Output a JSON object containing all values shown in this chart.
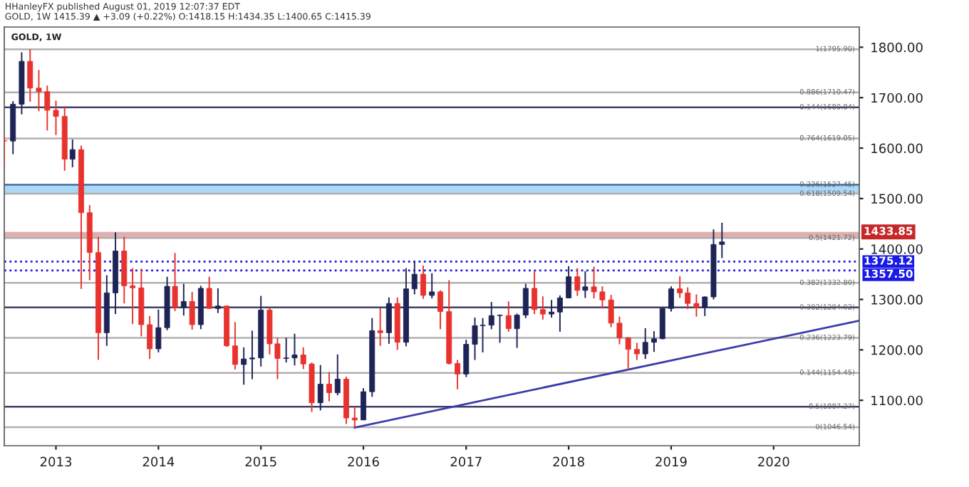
{
  "chart_data": {
    "type": "candlestick",
    "title": "GOLD, 1W",
    "subtitle": "GOLD, 1W 1415.39 ▲ +3.09 (+0.22%) O:1418.15 H:1434.35 L:1400.65 C:1415.39",
    "annotations": [
      "HHanleyFX published August 01, 2019 12:07:37 EDT"
    ],
    "x": [
      "2012-07",
      "2012-08",
      "2012-09",
      "2012-10",
      "2012-11",
      "2012-12",
      "2013-01",
      "2013-02",
      "2013-03",
      "2013-04",
      "2013-05",
      "2013-06",
      "2013-07",
      "2013-08",
      "2013-09",
      "2013-10",
      "2013-11",
      "2013-12",
      "2014-01",
      "2014-02",
      "2014-03",
      "2014-04",
      "2014-05",
      "2014-06",
      "2014-07",
      "2014-08",
      "2014-09",
      "2014-10",
      "2014-11",
      "2014-12",
      "2015-01",
      "2015-02",
      "2015-03",
      "2015-04",
      "2015-05",
      "2015-06",
      "2015-07",
      "2015-08",
      "2015-09",
      "2015-10",
      "2015-11",
      "2015-12",
      "2016-01",
      "2016-02",
      "2016-03",
      "2016-04",
      "2016-05",
      "2016-06",
      "2016-07",
      "2016-08",
      "2016-09",
      "2016-10",
      "2016-11",
      "2016-12",
      "2017-01",
      "2017-02",
      "2017-03",
      "2017-04",
      "2017-05",
      "2017-06",
      "2017-07",
      "2017-08",
      "2017-09",
      "2017-10",
      "2017-11",
      "2017-12",
      "2018-01",
      "2018-02",
      "2018-03",
      "2018-04",
      "2018-05",
      "2018-06",
      "2018-07",
      "2018-08",
      "2018-09",
      "2018-10",
      "2018-11",
      "2018-12",
      "2019-01",
      "2019-02",
      "2019-03",
      "2019-04",
      "2019-05",
      "2019-06",
      "2019-07"
    ],
    "ohlc": [
      [
        1615,
        1627,
        1565,
        1614
      ],
      [
        1614,
        1693,
        1588,
        1687
      ],
      [
        1687,
        1790,
        1667,
        1772
      ],
      [
        1772,
        1796,
        1692,
        1719
      ],
      [
        1719,
        1755,
        1673,
        1712
      ],
      [
        1712,
        1724,
        1635,
        1675
      ],
      [
        1675,
        1694,
        1626,
        1663
      ],
      [
        1663,
        1683,
        1555,
        1578
      ],
      [
        1578,
        1617,
        1562,
        1597
      ],
      [
        1597,
        1605,
        1321,
        1472
      ],
      [
        1472,
        1487,
        1338,
        1393
      ],
      [
        1393,
        1424,
        1180,
        1234
      ],
      [
        1234,
        1348,
        1208,
        1313
      ],
      [
        1313,
        1433,
        1271,
        1396
      ],
      [
        1396,
        1424,
        1292,
        1327
      ],
      [
        1327,
        1362,
        1251,
        1323
      ],
      [
        1323,
        1361,
        1227,
        1250
      ],
      [
        1250,
        1267,
        1182,
        1202
      ],
      [
        1202,
        1280,
        1195,
        1244
      ],
      [
        1244,
        1345,
        1239,
        1326
      ],
      [
        1326,
        1392,
        1277,
        1284
      ],
      [
        1284,
        1331,
        1268,
        1296
      ],
      [
        1296,
        1315,
        1240,
        1250
      ],
      [
        1250,
        1327,
        1241,
        1322
      ],
      [
        1322,
        1345,
        1281,
        1282
      ],
      [
        1282,
        1322,
        1273,
        1287
      ],
      [
        1287,
        1287,
        1206,
        1208
      ],
      [
        1208,
        1255,
        1161,
        1171
      ],
      [
        1171,
        1205,
        1131,
        1182
      ],
      [
        1182,
        1238,
        1142,
        1184
      ],
      [
        1184,
        1307,
        1167,
        1279
      ],
      [
        1279,
        1283,
        1191,
        1212
      ],
      [
        1212,
        1224,
        1142,
        1183
      ],
      [
        1183,
        1224,
        1175,
        1184
      ],
      [
        1184,
        1232,
        1169,
        1190
      ],
      [
        1190,
        1205,
        1162,
        1172
      ],
      [
        1172,
        1175,
        1077,
        1095
      ],
      [
        1095,
        1170,
        1080,
        1132
      ],
      [
        1132,
        1156,
        1098,
        1115
      ],
      [
        1115,
        1191,
        1110,
        1142
      ],
      [
        1142,
        1147,
        1053,
        1065
      ],
      [
        1065,
        1088,
        1046,
        1061
      ],
      [
        1061,
        1124,
        1061,
        1117
      ],
      [
        1117,
        1263,
        1107,
        1238
      ],
      [
        1238,
        1283,
        1208,
        1234
      ],
      [
        1234,
        1304,
        1212,
        1292
      ],
      [
        1292,
        1304,
        1200,
        1215
      ],
      [
        1215,
        1362,
        1207,
        1321
      ],
      [
        1321,
        1375,
        1310,
        1350
      ],
      [
        1350,
        1367,
        1301,
        1308
      ],
      [
        1308,
        1352,
        1302,
        1315
      ],
      [
        1315,
        1318,
        1241,
        1276
      ],
      [
        1276,
        1338,
        1171,
        1173
      ],
      [
        1173,
        1180,
        1122,
        1152
      ],
      [
        1152,
        1220,
        1146,
        1211
      ],
      [
        1211,
        1264,
        1180,
        1248
      ],
      [
        1248,
        1263,
        1195,
        1249
      ],
      [
        1249,
        1295,
        1241,
        1268
      ],
      [
        1268,
        1270,
        1214,
        1268
      ],
      [
        1268,
        1296,
        1236,
        1242
      ],
      [
        1242,
        1272,
        1204,
        1269
      ],
      [
        1269,
        1331,
        1263,
        1322
      ],
      [
        1322,
        1357,
        1271,
        1280
      ],
      [
        1280,
        1306,
        1260,
        1271
      ],
      [
        1271,
        1299,
        1264,
        1275
      ],
      [
        1275,
        1308,
        1236,
        1303
      ],
      [
        1303,
        1366,
        1302,
        1345
      ],
      [
        1345,
        1362,
        1307,
        1318
      ],
      [
        1318,
        1356,
        1303,
        1325
      ],
      [
        1325,
        1365,
        1302,
        1315
      ],
      [
        1315,
        1326,
        1282,
        1299
      ],
      [
        1299,
        1309,
        1245,
        1253
      ],
      [
        1253,
        1266,
        1211,
        1224
      ],
      [
        1224,
        1225,
        1160,
        1201
      ],
      [
        1201,
        1214,
        1180,
        1192
      ],
      [
        1192,
        1243,
        1182,
        1215
      ],
      [
        1215,
        1237,
        1196,
        1222
      ],
      [
        1222,
        1284,
        1221,
        1282
      ],
      [
        1282,
        1326,
        1276,
        1321
      ],
      [
        1321,
        1346,
        1303,
        1313
      ],
      [
        1313,
        1324,
        1281,
        1292
      ],
      [
        1292,
        1310,
        1266,
        1284
      ],
      [
        1284,
        1306,
        1267,
        1305
      ],
      [
        1305,
        1439,
        1300,
        1409
      ],
      [
        1409,
        1452,
        1382,
        1414
      ]
    ],
    "series": [
      {
        "type": "line",
        "x": [
          "2015-12",
          "2020-11"
        ],
        "values": [
          1046,
          1258
        ],
        "color": "#3a3aa8"
      }
    ],
    "xlim": [
      "2012-07",
      "2020-11"
    ],
    "xticks": [
      "2013",
      "2014",
      "2015",
      "2016",
      "2017",
      "2018",
      "2019",
      "2020"
    ],
    "ylim": [
      1010,
      1840
    ],
    "yticks": [
      {
        "value": 1100,
        "label": "1100.00"
      },
      {
        "value": 1200,
        "label": "1200.00"
      },
      {
        "value": 1300,
        "label": "1300.00"
      },
      {
        "value": 1400,
        "label": "1400.00"
      },
      {
        "value": 1500,
        "label": "1500.00"
      },
      {
        "value": 1600,
        "label": "1600.00"
      },
      {
        "value": 1700,
        "label": "1700.00"
      },
      {
        "value": 1800,
        "label": "1800.00"
      }
    ],
    "ref_lines": [
      {
        "axis": "y",
        "value": 1795.9,
        "label": "1(1795.90)",
        "color": "#b0b0b0"
      },
      {
        "axis": "y",
        "value": 1710.47,
        "label": "0.886(1710.47)",
        "color": "#b0b0b0"
      },
      {
        "axis": "y",
        "value": 1680.84,
        "label": "0.144(1680.84)",
        "color": "#40406a"
      },
      {
        "axis": "y",
        "value": 1619.05,
        "label": "0.764(1619.05)",
        "color": "#b0b0b0"
      },
      {
        "axis": "y",
        "value": 1527.45,
        "label": "0.236(1527.45)",
        "color": "#3c6e9e"
      },
      {
        "axis": "y",
        "value": 1509.54,
        "label": "0.618(1509.54)",
        "color": "#b0b0b0"
      },
      {
        "axis": "y",
        "value": 1421.72,
        "label": "0.5(1421.72)",
        "color": "#b0b0b0"
      },
      {
        "axis": "y",
        "value": 1375.12,
        "label": "1375.12",
        "color": "#1a1ae6",
        "line_style": "dotted"
      },
      {
        "axis": "y",
        "value": 1357.5,
        "label": "1357.50",
        "color": "#1a1ae6",
        "line_style": "dotted"
      },
      {
        "axis": "y",
        "value": 1332.8,
        "label": "0.382(1332.80)",
        "color": "#b0b0b0"
      },
      {
        "axis": "y",
        "value": 1284.02,
        "label": "0.382(1284.02)",
        "color": "#40406a"
      },
      {
        "axis": "y",
        "value": 1223.79,
        "label": "0.236(1223.79)",
        "color": "#b0b0b0"
      },
      {
        "axis": "y",
        "value": 1154.45,
        "label": "0.144(1154.45)",
        "color": "#b0b0b0"
      },
      {
        "axis": "y",
        "value": 1087.27,
        "label": "0.5(1087.27)",
        "color": "#40406a"
      },
      {
        "axis": "y",
        "value": 1046.54,
        "label": "0(1046.54)",
        "color": "#b0b0b0"
      }
    ],
    "bands": [
      {
        "axis": "y",
        "from": 1509.54,
        "to": 1527.45,
        "color": "#9fd0f5"
      },
      {
        "axis": "y",
        "from": 1421.72,
        "to": 1433.85,
        "label": "1433.85",
        "color": "#d9a0a0"
      }
    ],
    "grid": false
  }
}
